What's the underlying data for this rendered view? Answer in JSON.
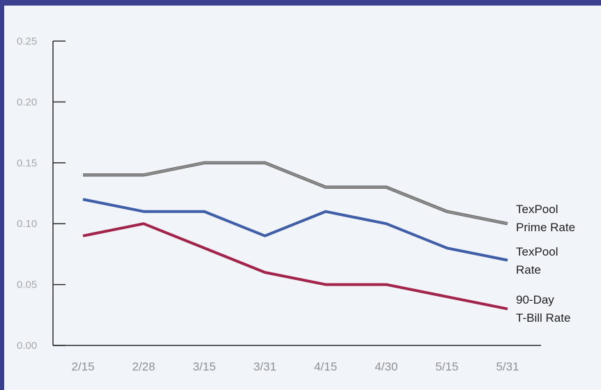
{
  "chart_data": {
    "type": "line",
    "categories": [
      "2/15",
      "2/28",
      "3/15",
      "3/31",
      "4/15",
      "4/30",
      "5/15",
      "5/31"
    ],
    "ylim": [
      0,
      0.25
    ],
    "yticks": [
      "0.00",
      "0.05",
      "0.10",
      "0.15",
      "0.20",
      "0.25"
    ],
    "ytick_values": [
      0,
      0.05,
      0.1,
      0.15,
      0.2,
      0.25
    ],
    "grid": false,
    "series": [
      {
        "name": "TexPool Prime Rate",
        "label_lines": [
          "TexPool",
          "Prime Rate"
        ],
        "color": "#8c8c8c",
        "values": [
          0.14,
          0.14,
          0.15,
          0.15,
          0.13,
          0.13,
          0.11,
          0.1
        ]
      },
      {
        "name": "TexPool Rate",
        "label_lines": [
          "TexPool",
          "Rate"
        ],
        "color": "#3f5ea8",
        "values": [
          0.12,
          0.11,
          0.11,
          0.09,
          0.11,
          0.1,
          0.08,
          0.07
        ]
      },
      {
        "name": "90-Day T-Bill Rate",
        "label_lines": [
          "90-Day",
          "T-Bill Rate"
        ],
        "color": "#a3244a",
        "values": [
          0.09,
          0.1,
          0.08,
          0.06,
          0.05,
          0.05,
          0.04,
          0.03
        ]
      }
    ]
  }
}
